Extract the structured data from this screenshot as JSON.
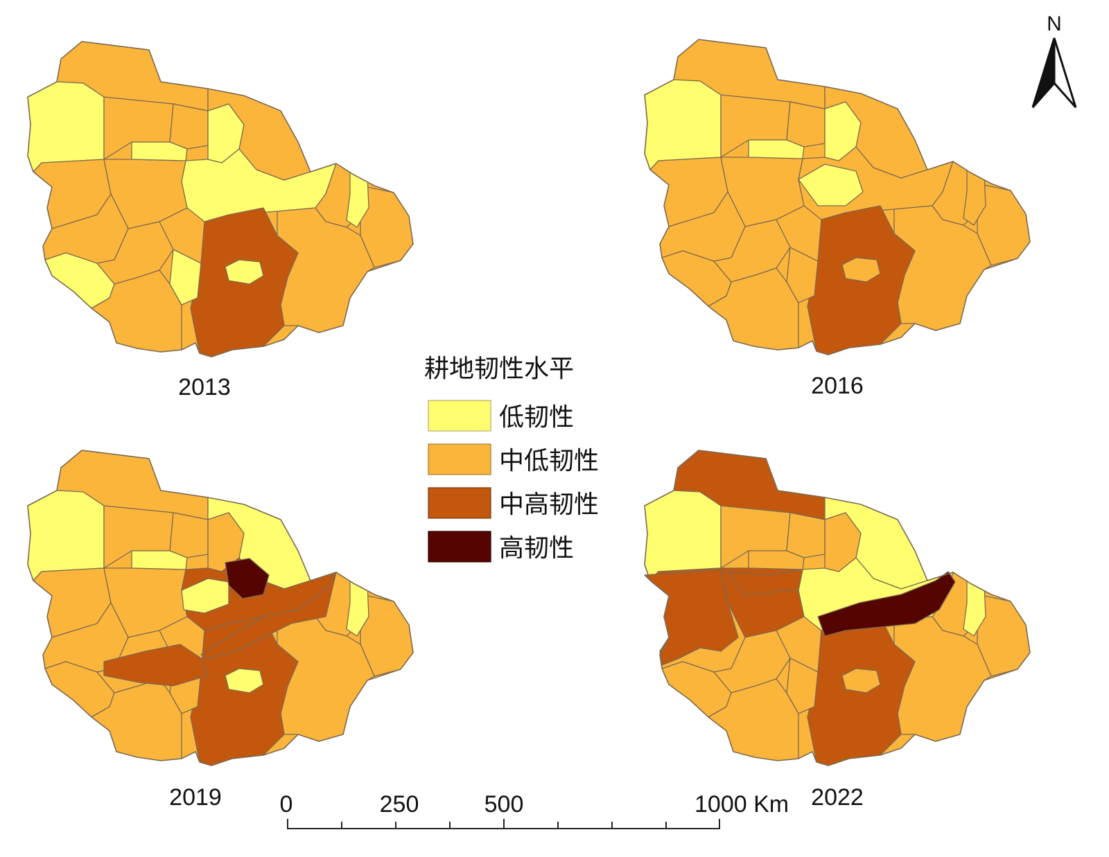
{
  "legend": {
    "title": "耕地韧性水平",
    "classes": [
      {
        "label": "低韧性",
        "color": "#fffe6e"
      },
      {
        "label": "中低韧性",
        "color": "#fcb53b"
      },
      {
        "label": "中高韧性",
        "color": "#c4570e"
      },
      {
        "label": "高韧性",
        "color": "#540401"
      }
    ]
  },
  "maps": [
    {
      "year": "2013"
    },
    {
      "year": "2016"
    },
    {
      "year": "2019"
    },
    {
      "year": "2022"
    }
  ],
  "scale_bar": {
    "labels": [
      "0",
      "250",
      "500",
      "1000 Km"
    ]
  },
  "north_arrow": {
    "label": "N",
    "icon": "north-arrow-icon"
  }
}
